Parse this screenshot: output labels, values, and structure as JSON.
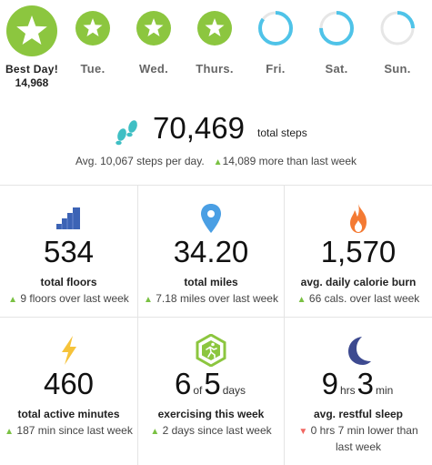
{
  "week": {
    "days": [
      {
        "label": "Best Day!",
        "sub": "14,968",
        "goal_met": true,
        "progress": 1.0
      },
      {
        "label": "Tue.",
        "goal_met": true,
        "progress": 1.0
      },
      {
        "label": "Wed.",
        "goal_met": true,
        "progress": 1.0
      },
      {
        "label": "Thurs.",
        "goal_met": true,
        "progress": 1.0
      },
      {
        "label": "Fri.",
        "goal_met": false,
        "progress": 0.85
      },
      {
        "label": "Sat.",
        "goal_met": false,
        "progress": 0.75
      },
      {
        "label": "Sun.",
        "goal_met": false,
        "progress": 0.25
      }
    ]
  },
  "summary": {
    "total_steps": "70,469",
    "total_steps_unit": "total steps",
    "avg_text": "Avg. 10,067 steps per day.",
    "change_text": "14,089 more than last week",
    "change_dir": "up"
  },
  "stats": [
    {
      "icon": "stairs-icon",
      "value": "534",
      "label": "total floors",
      "change": "9 floors over last week",
      "dir": "up"
    },
    {
      "icon": "map-pin-icon",
      "value": "34.20",
      "label": "total miles",
      "change": "7.18 miles over last week",
      "dir": "up"
    },
    {
      "icon": "flame-icon",
      "value": "1,570",
      "label": "avg. daily calorie burn",
      "change": "66 cals. over last week",
      "dir": "up"
    },
    {
      "icon": "lightning-icon",
      "value": "460",
      "label": "total active minutes",
      "change": "187 min since last week",
      "dir": "up"
    },
    {
      "icon": "runner-hexagon-icon",
      "value_a": "6",
      "value_of": "of",
      "value_b": "5",
      "value_unit": "days",
      "label": "exercising this week",
      "change": "2 days since last week",
      "dir": "up"
    },
    {
      "icon": "moon-icon",
      "value_a": "9",
      "value_hrs": "hrs",
      "value_b": "3",
      "value_min": "min",
      "label": "avg. restful sleep",
      "change": "0 hrs 7 min lower than last week",
      "dir": "down"
    }
  ],
  "colors": {
    "goal_green": "#8cc63f",
    "ring_blue": "#4fc3e8",
    "up_green": "#7ac143",
    "down_red": "#f16661"
  }
}
